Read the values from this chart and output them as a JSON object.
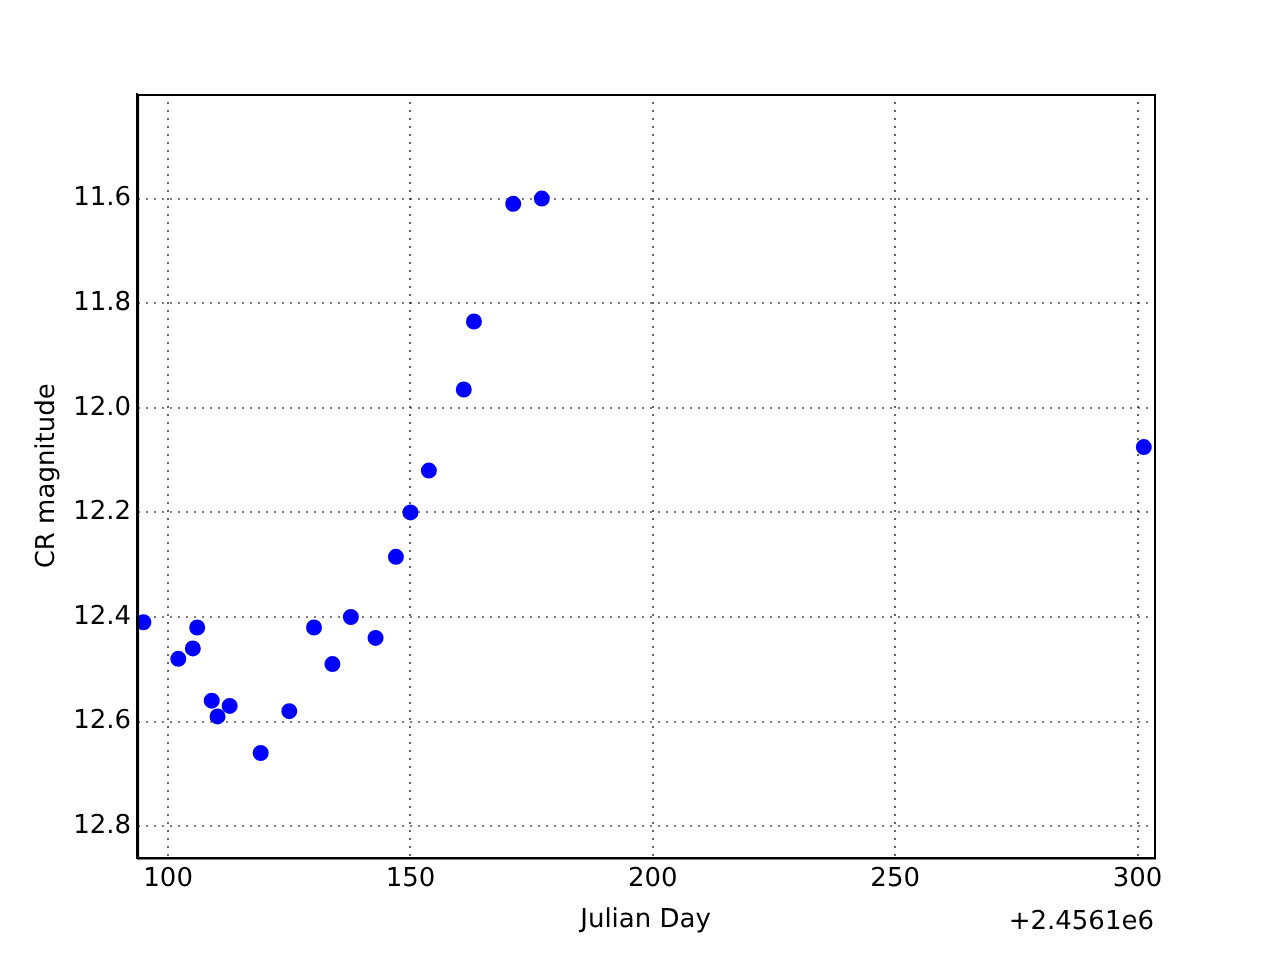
{
  "chart_data": {
    "type": "scatter",
    "xlabel": "Julian Day",
    "ylabel": "CR magnitude",
    "annotations": [
      "+2.4561e6"
    ],
    "x": [
      94.9,
      102.1,
      105.1,
      106.0,
      109.0,
      110.2,
      112.7,
      119.1,
      125.0,
      130.1,
      133.9,
      137.7,
      142.8,
      147.0,
      150.0,
      153.8,
      161.0,
      163.1,
      171.2,
      177.1,
      301.3
    ],
    "series": [
      {
        "color": "#0000ff",
        "values": [
          12.41,
          12.48,
          12.46,
          12.42,
          12.56,
          12.59,
          12.57,
          12.66,
          12.58,
          12.42,
          12.49,
          12.4,
          12.44,
          12.285,
          12.2,
          12.12,
          11.965,
          11.835,
          11.61,
          11.6,
          12.075
        ]
      }
    ],
    "xlim": [
      93.6,
      303.4
    ],
    "xticks": [
      100,
      150,
      200,
      250,
      300
    ],
    "ylim": [
      12.86,
      11.4
    ],
    "yticks": [
      {
        "value": 11.6,
        "label": "11.6"
      },
      {
        "value": 11.8,
        "label": "11.8"
      },
      {
        "value": 12.0,
        "label": "12.0"
      },
      {
        "value": 12.2,
        "label": "12.2"
      },
      {
        "value": 12.4,
        "label": "12.4"
      },
      {
        "value": 12.6,
        "label": "12.6"
      },
      {
        "value": 12.8,
        "label": "12.8"
      }
    ],
    "grid": true,
    "marker": "circle",
    "legend": false
  }
}
